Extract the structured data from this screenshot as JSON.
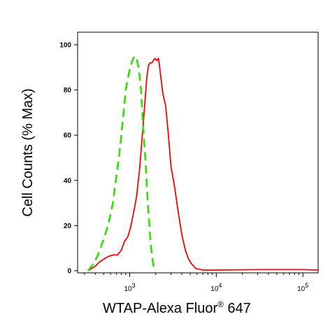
{
  "chart_data": {
    "type": "line",
    "title": "",
    "xlabel": "WTAP-Alexa Fluor",
    "xlabel_sup": "®",
    "xlabel_suffix": " 647",
    "ylabel": "Cell Counts (% Max)",
    "xscale": "log",
    "xlim": [
      250,
      150000
    ],
    "ylim": [
      0,
      105
    ],
    "yticks": [
      0,
      20,
      40,
      60,
      80,
      100
    ],
    "ytick_labels": [
      "0",
      "20",
      "40",
      "60",
      "80",
      "100"
    ],
    "xticks": [
      1000,
      10000,
      100000
    ],
    "xtick_base": "10",
    "xtick_exponents": [
      "3",
      "4",
      "5"
    ],
    "grid": false,
    "series": [
      {
        "color": "#ff0000",
        "style": "solid",
        "x": [
          330,
          400,
          450,
          520,
          580,
          650,
          720,
          800,
          870,
          950,
          1020,
          1100,
          1200,
          1300,
          1400,
          1500,
          1580,
          1650,
          1720,
          1800,
          1870,
          1950,
          2050,
          2150,
          2250,
          2400,
          2600,
          2800,
          3000,
          3300,
          3600,
          4000,
          4400,
          4800,
          5200,
          5800,
          7000,
          10000,
          30000,
          100000,
          150000
        ],
        "y": [
          0,
          2,
          4,
          5.5,
          6.5,
          7,
          7,
          9,
          13,
          15,
          19,
          25,
          33,
          45,
          60,
          75,
          86,
          91,
          92,
          92,
          93,
          94,
          93,
          94,
          88,
          79,
          73,
          60,
          46,
          37,
          27,
          16,
          9,
          5,
          3,
          1,
          0.3,
          0.3,
          0.5,
          0.5,
          0.3
        ]
      },
      {
        "color": "#33dd00",
        "style": "dashed",
        "x": [
          330,
          380,
          430,
          480,
          520,
          560,
          600,
          640,
          680,
          720,
          760,
          800,
          850,
          900,
          950,
          1000,
          1050,
          1100,
          1150,
          1200,
          1250,
          1300,
          1350,
          1400,
          1450,
          1500,
          1550,
          1600,
          1650,
          1700,
          1750,
          1800,
          1850,
          1900,
          2000
        ],
        "y": [
          0,
          3,
          7,
          12,
          16,
          20,
          25,
          30,
          38,
          45,
          52,
          60,
          70,
          80,
          85,
          89,
          92,
          94,
          95,
          94,
          91,
          86,
          80,
          70,
          60,
          52,
          43,
          33,
          25,
          18,
          12,
          7,
          4,
          1.5,
          0
        ]
      }
    ]
  }
}
